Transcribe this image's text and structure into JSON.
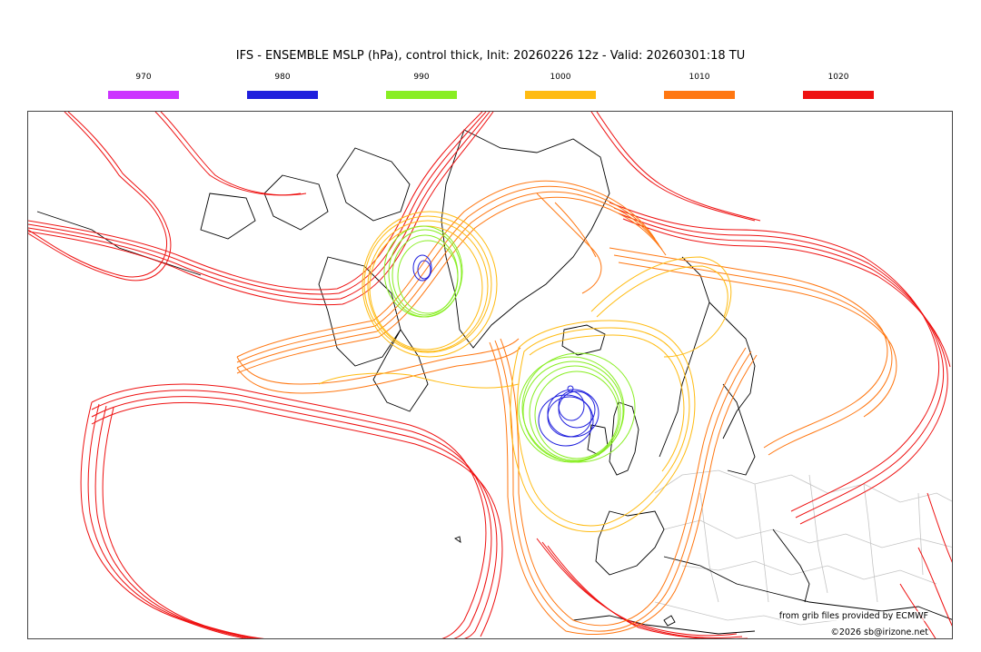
{
  "title": "IFS - ENSEMBLE MSLP (hPa), control thick, Init: 20260226 12z - Valid: 20260301:18 TU",
  "legend": [
    {
      "label": "970",
      "color": "#cc33ff"
    },
    {
      "label": "980",
      "color": "#1f1fdd"
    },
    {
      "label": "990",
      "color": "#88ee22"
    },
    {
      "label": "1000",
      "color": "#ffbb11"
    },
    {
      "label": "1010",
      "color": "#ff7711"
    },
    {
      "label": "1020",
      "color": "#ee1111"
    }
  ],
  "credits": {
    "line1": "from grib files provided by ECMWF",
    "line2": "©2026 sb@irizone.net"
  },
  "map": {
    "colors": {
      "coast": "#000000",
      "border": "#bbbbbb",
      "c1020": "#ee1111",
      "c1010": "#ff7711",
      "c1000": "#ffbb11",
      "c990": "#88ee22",
      "c980": "#1f1fdd"
    }
  }
}
